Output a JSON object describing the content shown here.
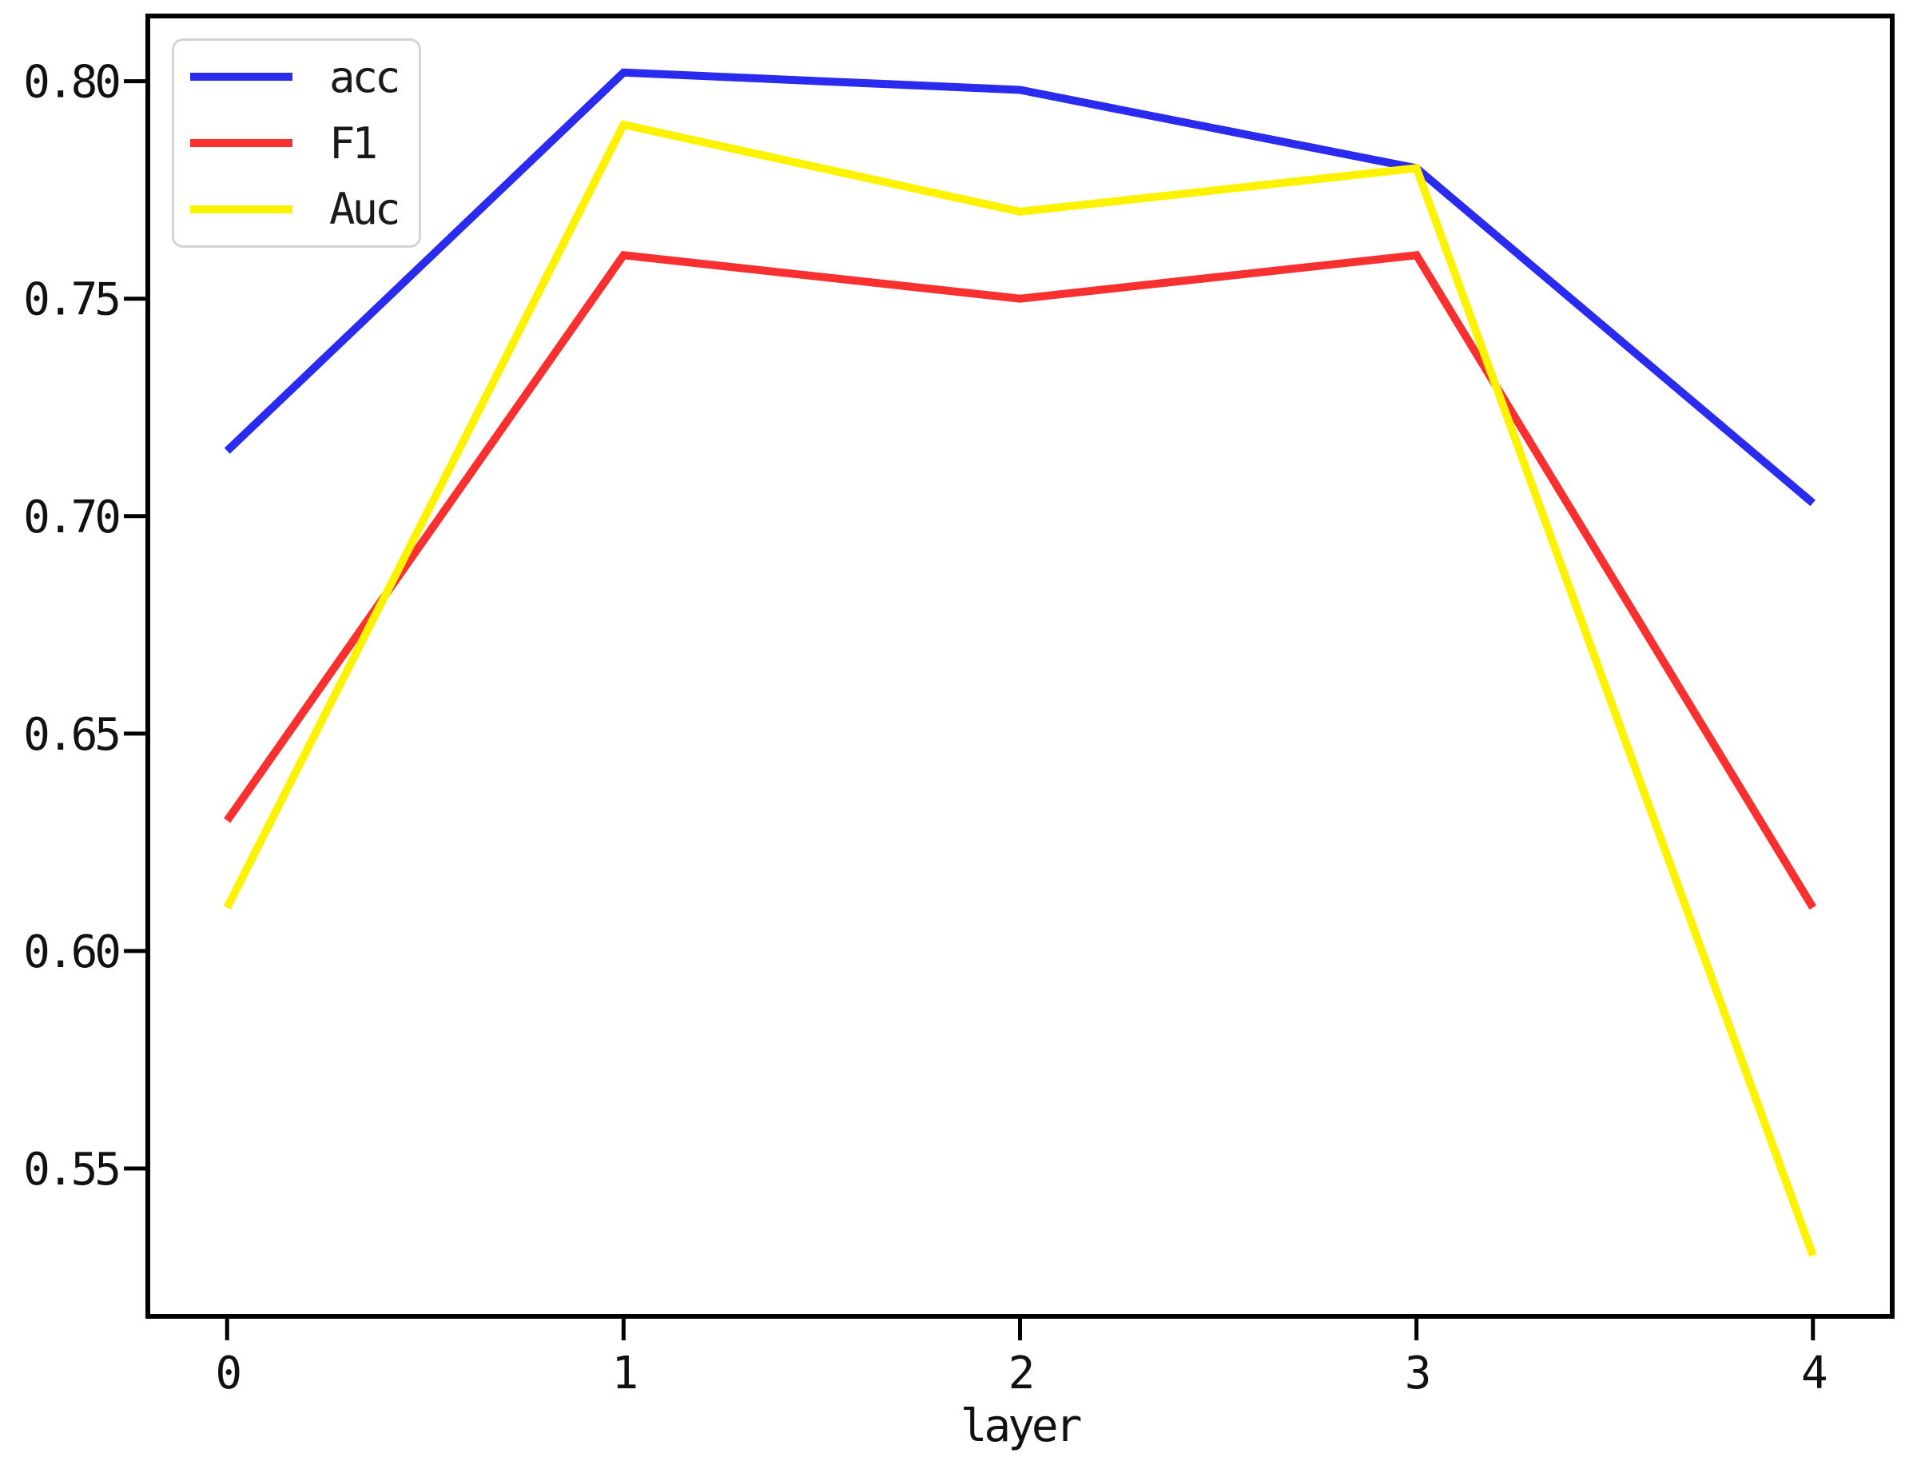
{
  "figure": {
    "background": "#ffffff",
    "axis_color": "#000000",
    "xlabel": "layer"
  },
  "legend": {
    "position": "upper-left",
    "items": [
      {
        "label": "acc",
        "color": "#2b2bf0"
      },
      {
        "label": "F1",
        "color": "#f93030"
      },
      {
        "label": "Auc",
        "color": "#fdf300"
      }
    ]
  },
  "chart_data": {
    "type": "line",
    "title": "",
    "xlabel": "layer",
    "ylabel": "",
    "x": [
      0,
      1,
      2,
      3,
      4
    ],
    "series": [
      {
        "name": "acc",
        "color": "#2b2bf0",
        "values": [
          0.715,
          0.802,
          0.798,
          0.78,
          0.703
        ]
      },
      {
        "name": "F1",
        "color": "#f93030",
        "values": [
          0.63,
          0.76,
          0.75,
          0.76,
          0.61
        ]
      },
      {
        "name": "Auc",
        "color": "#fdf300",
        "values": [
          0.61,
          0.79,
          0.77,
          0.78,
          0.53
        ]
      }
    ],
    "xlim": [
      -0.2,
      4.2
    ],
    "ylim": [
      0.516,
      0.815
    ],
    "xticks": [
      0,
      1,
      2,
      3,
      4
    ],
    "xtick_labels": [
      "0",
      "1",
      "2",
      "3",
      "4"
    ],
    "yticks": [
      0.55,
      0.6,
      0.65,
      0.7,
      0.75,
      0.8
    ],
    "ytick_labels": [
      "0.55",
      "0.60",
      "0.65",
      "0.70",
      "0.75",
      "0.80"
    ],
    "grid": false,
    "legend_position": "upper-left",
    "line_width": 10
  }
}
